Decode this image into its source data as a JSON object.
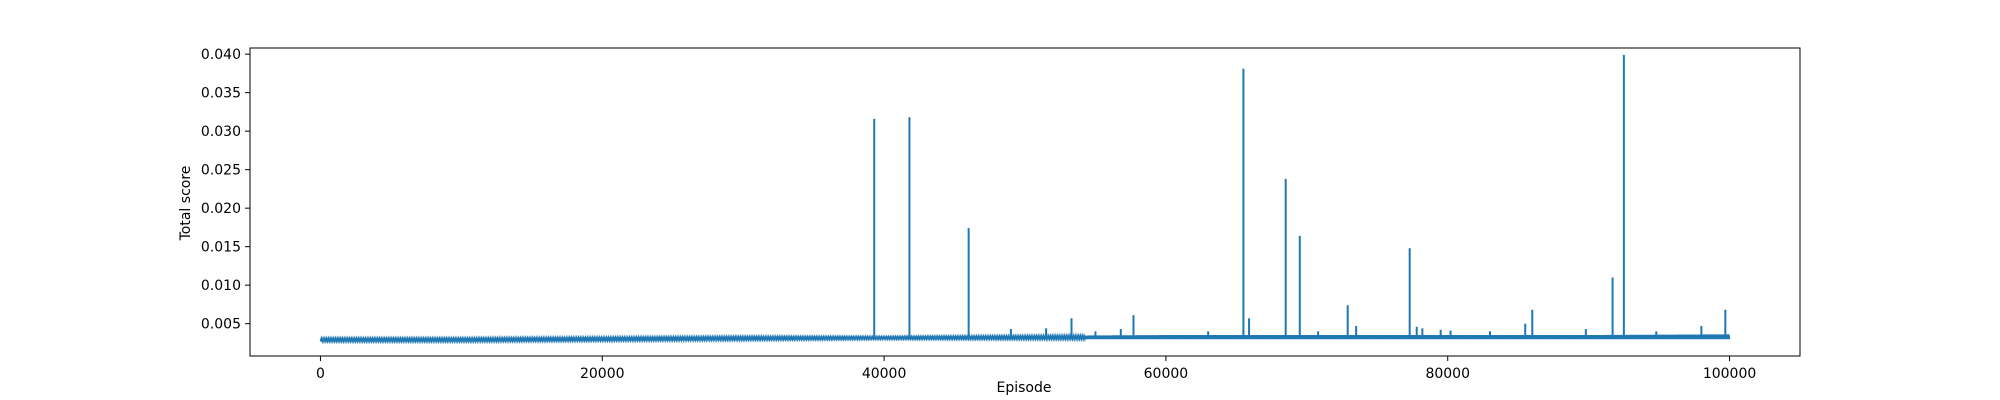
{
  "chart_data": {
    "type": "line",
    "title": "",
    "xlabel": "Episode",
    "ylabel": "Total score",
    "xlim": [
      -5000,
      105000
    ],
    "ylim": [
      0.0008,
      0.0408
    ],
    "xticks": [
      0,
      20000,
      40000,
      60000,
      80000,
      100000
    ],
    "xtick_labels": [
      "0",
      "20000",
      "40000",
      "60000",
      "80000",
      "100000"
    ],
    "yticks": [
      0.005,
      0.01,
      0.015,
      0.02,
      0.025,
      0.03,
      0.035,
      0.04
    ],
    "ytick_labels": [
      "0.005",
      "0.010",
      "0.015",
      "0.020",
      "0.025",
      "0.030",
      "0.035",
      "0.040"
    ],
    "grid": false,
    "series_color": "#1f77b4",
    "baseline": {
      "x": [
        0,
        10000,
        20000,
        30000,
        40000,
        50000,
        60000,
        70000,
        80000,
        90000,
        100000
      ],
      "y_low": [
        0.0027,
        0.0027,
        0.0028,
        0.0029,
        0.003,
        0.003,
        0.003,
        0.003,
        0.003,
        0.003,
        0.003
      ],
      "y_high": [
        0.0031,
        0.0031,
        0.0032,
        0.0033,
        0.0033,
        0.0034,
        0.0035,
        0.0035,
        0.0035,
        0.0035,
        0.0036
      ]
    },
    "spikes": {
      "x": [
        39300,
        41800,
        46000,
        49000,
        51500,
        53300,
        55000,
        56800,
        57700,
        63000,
        65500,
        65900,
        68500,
        69500,
        70800,
        72900,
        73500,
        77300,
        77800,
        78200,
        79500,
        80200,
        83000,
        85500,
        86000,
        89800,
        91700,
        92500,
        94800,
        98000,
        99700
      ],
      "y": [
        0.0316,
        0.0318,
        0.0174,
        0.0043,
        0.0044,
        0.0057,
        0.004,
        0.0043,
        0.0061,
        0.004,
        0.0381,
        0.0057,
        0.0238,
        0.0164,
        0.004,
        0.0074,
        0.0047,
        0.0148,
        0.0046,
        0.0044,
        0.0042,
        0.0041,
        0.004,
        0.005,
        0.0068,
        0.0043,
        0.011,
        0.0399,
        0.004,
        0.0047,
        0.0068
      ]
    }
  }
}
